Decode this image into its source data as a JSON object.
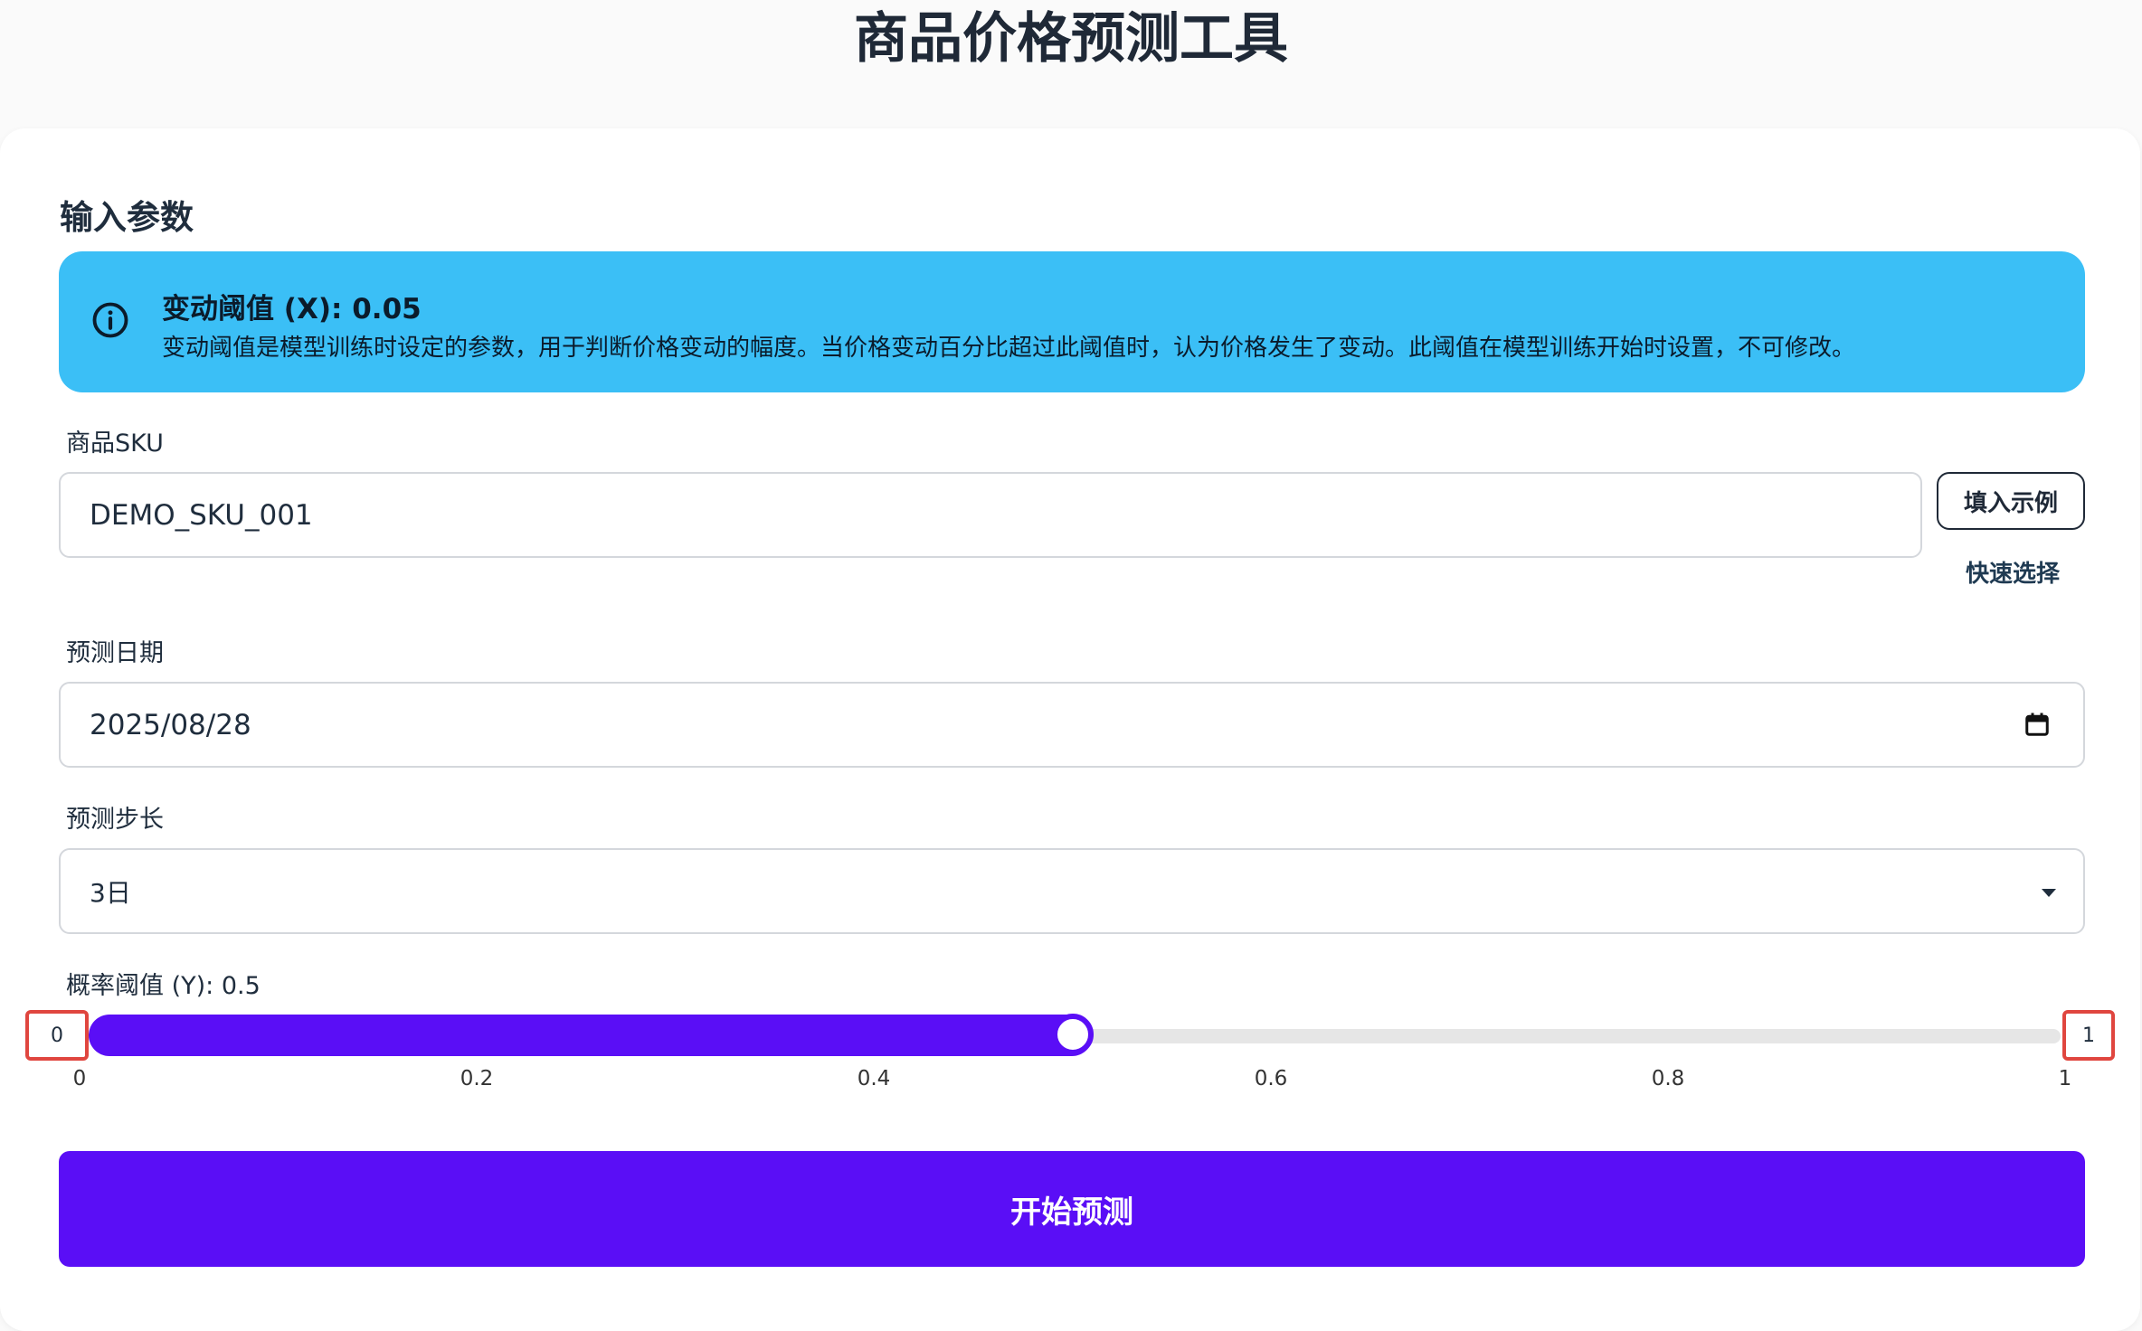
{
  "header": {
    "title": "商品价格预测工具"
  },
  "form": {
    "section_title": "输入参数",
    "info": {
      "title": "变动阈值 (X): 0.05",
      "text": "变动阈值是模型训练时设定的参数，用于判断价格变动的幅度。当价格变动百分比超过此阈值时，认为价格发生了变动。此阈值在模型训练开始时设置，不可修改。",
      "icon": "info-circle-icon"
    },
    "sku": {
      "label": "商品SKU",
      "value": "DEMO_SKU_001",
      "fill_example_label": "填入示例",
      "quick_select_label": "快速选择"
    },
    "date": {
      "label": "预测日期",
      "value": "2025/08/28",
      "icon": "calendar-icon"
    },
    "step": {
      "label": "预测步长",
      "value": "3日",
      "icon": "caret-down-icon"
    },
    "probability": {
      "label": "概率阈值 (Y): 0.5",
      "value": 0.5,
      "min_label": "0",
      "max_label": "1",
      "ticks": [
        "0",
        "0.2",
        "0.4",
        "0.6",
        "0.8",
        "1"
      ]
    },
    "submit_label": "开始预测",
    "accent_color": "#5a0ef6",
    "info_color": "#3bbff6"
  }
}
